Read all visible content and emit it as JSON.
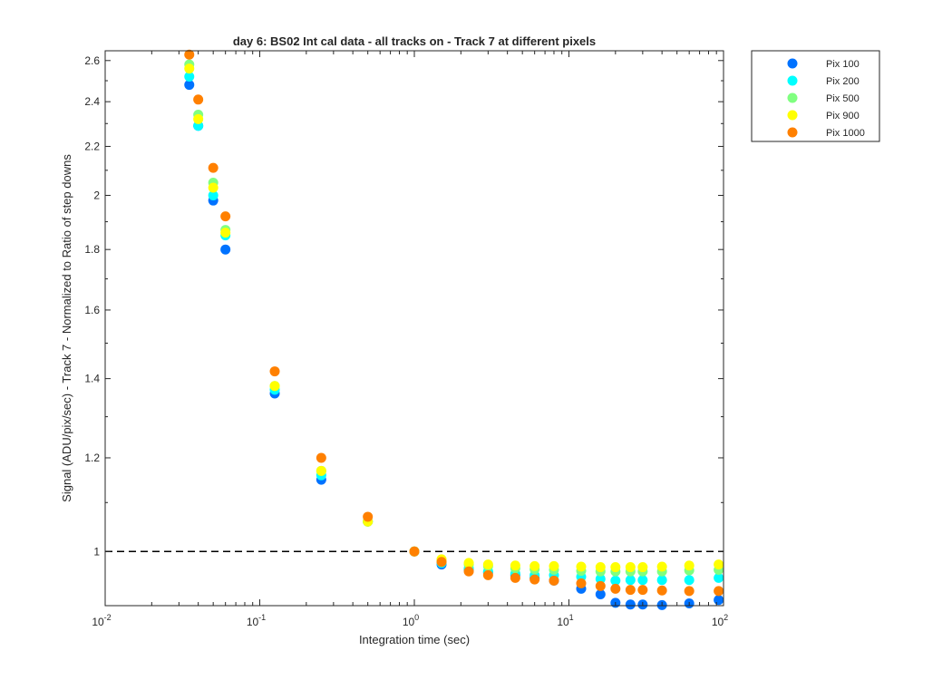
{
  "chart_data": {
    "type": "scatter",
    "title": "day 6: BS02   Int cal data - all tracks on - Track 7 at different pixels",
    "xlabel": "Integration time (sec)",
    "ylabel": "Signal (ADU/pix/sec) - Track 7 - Normalized to Ratio of step downs",
    "xscale": "log",
    "yscale": "log",
    "xlim": [
      0.01,
      100
    ],
    "ylim": [
      0.9,
      2.65
    ],
    "x_ticks": [
      {
        "value": 0.01,
        "base": "10",
        "exp": "-2"
      },
      {
        "value": 0.1,
        "base": "10",
        "exp": "-1"
      },
      {
        "value": 1,
        "base": "10",
        "exp": "0"
      },
      {
        "value": 10,
        "base": "10",
        "exp": "1"
      },
      {
        "value": 100,
        "base": "10",
        "exp": "2"
      }
    ],
    "y_ticks": [
      {
        "value": 1.0,
        "label": "1"
      },
      {
        "value": 1.2,
        "label": "1.2"
      },
      {
        "value": 1.4,
        "label": "1.4"
      },
      {
        "value": 1.6,
        "label": "1.6"
      },
      {
        "value": 1.8,
        "label": "1.8"
      },
      {
        "value": 2.0,
        "label": "2"
      },
      {
        "value": 2.2,
        "label": "2.2"
      },
      {
        "value": 2.4,
        "label": "2.4"
      },
      {
        "value": 2.6,
        "label": "2.6"
      }
    ],
    "reference_line": {
      "y": 1.0,
      "style": "dashed"
    },
    "legend_position": "outside-top-right",
    "x": [
      0.035,
      0.04,
      0.05,
      0.06,
      0.125,
      0.25,
      0.5,
      1,
      1.5,
      2.25,
      3,
      4.5,
      6,
      8,
      12,
      16,
      20,
      25,
      30,
      40,
      60,
      93
    ],
    "series": [
      {
        "name": "Pix 100",
        "color": "#0072ff",
        "values": [
          2.48,
          2.29,
          1.98,
          1.8,
          1.36,
          1.15,
          1.06,
          1.0,
          0.975,
          0.965,
          0.96,
          0.955,
          0.95,
          0.945,
          0.93,
          0.92,
          0.905,
          0.902,
          0.902,
          0.901,
          0.904,
          0.91
        ]
      },
      {
        "name": "Pix 200",
        "color": "#00ffff",
        "values": [
          2.52,
          2.29,
          2.0,
          1.85,
          1.37,
          1.16,
          1.06,
          1.0,
          0.978,
          0.968,
          0.962,
          0.958,
          0.955,
          0.955,
          0.952,
          0.948,
          0.945,
          0.946,
          0.946,
          0.946,
          0.946,
          0.95
        ]
      },
      {
        "name": "Pix 500",
        "color": "#80ff80",
        "values": [
          2.58,
          2.34,
          2.05,
          1.87,
          1.38,
          1.17,
          1.06,
          1.0,
          0.983,
          0.975,
          0.972,
          0.968,
          0.966,
          0.965,
          0.963,
          0.962,
          0.962,
          0.962,
          0.962,
          0.962,
          0.964,
          0.965
        ]
      },
      {
        "name": "Pix 900",
        "color": "#ffff00",
        "values": [
          2.56,
          2.32,
          2.03,
          1.86,
          1.38,
          1.17,
          1.06,
          1.0,
          0.985,
          0.978,
          0.975,
          0.973,
          0.972,
          0.972,
          0.971,
          0.97,
          0.97,
          0.97,
          0.97,
          0.971,
          0.973,
          0.975
        ]
      },
      {
        "name": "Pix 1000",
        "color": "#ff8000",
        "values": [
          2.63,
          2.41,
          2.11,
          1.92,
          1.42,
          1.2,
          1.07,
          1.0,
          0.98,
          0.962,
          0.955,
          0.95,
          0.947,
          0.945,
          0.94,
          0.935,
          0.93,
          0.928,
          0.928,
          0.927,
          0.926,
          0.926
        ]
      }
    ]
  }
}
